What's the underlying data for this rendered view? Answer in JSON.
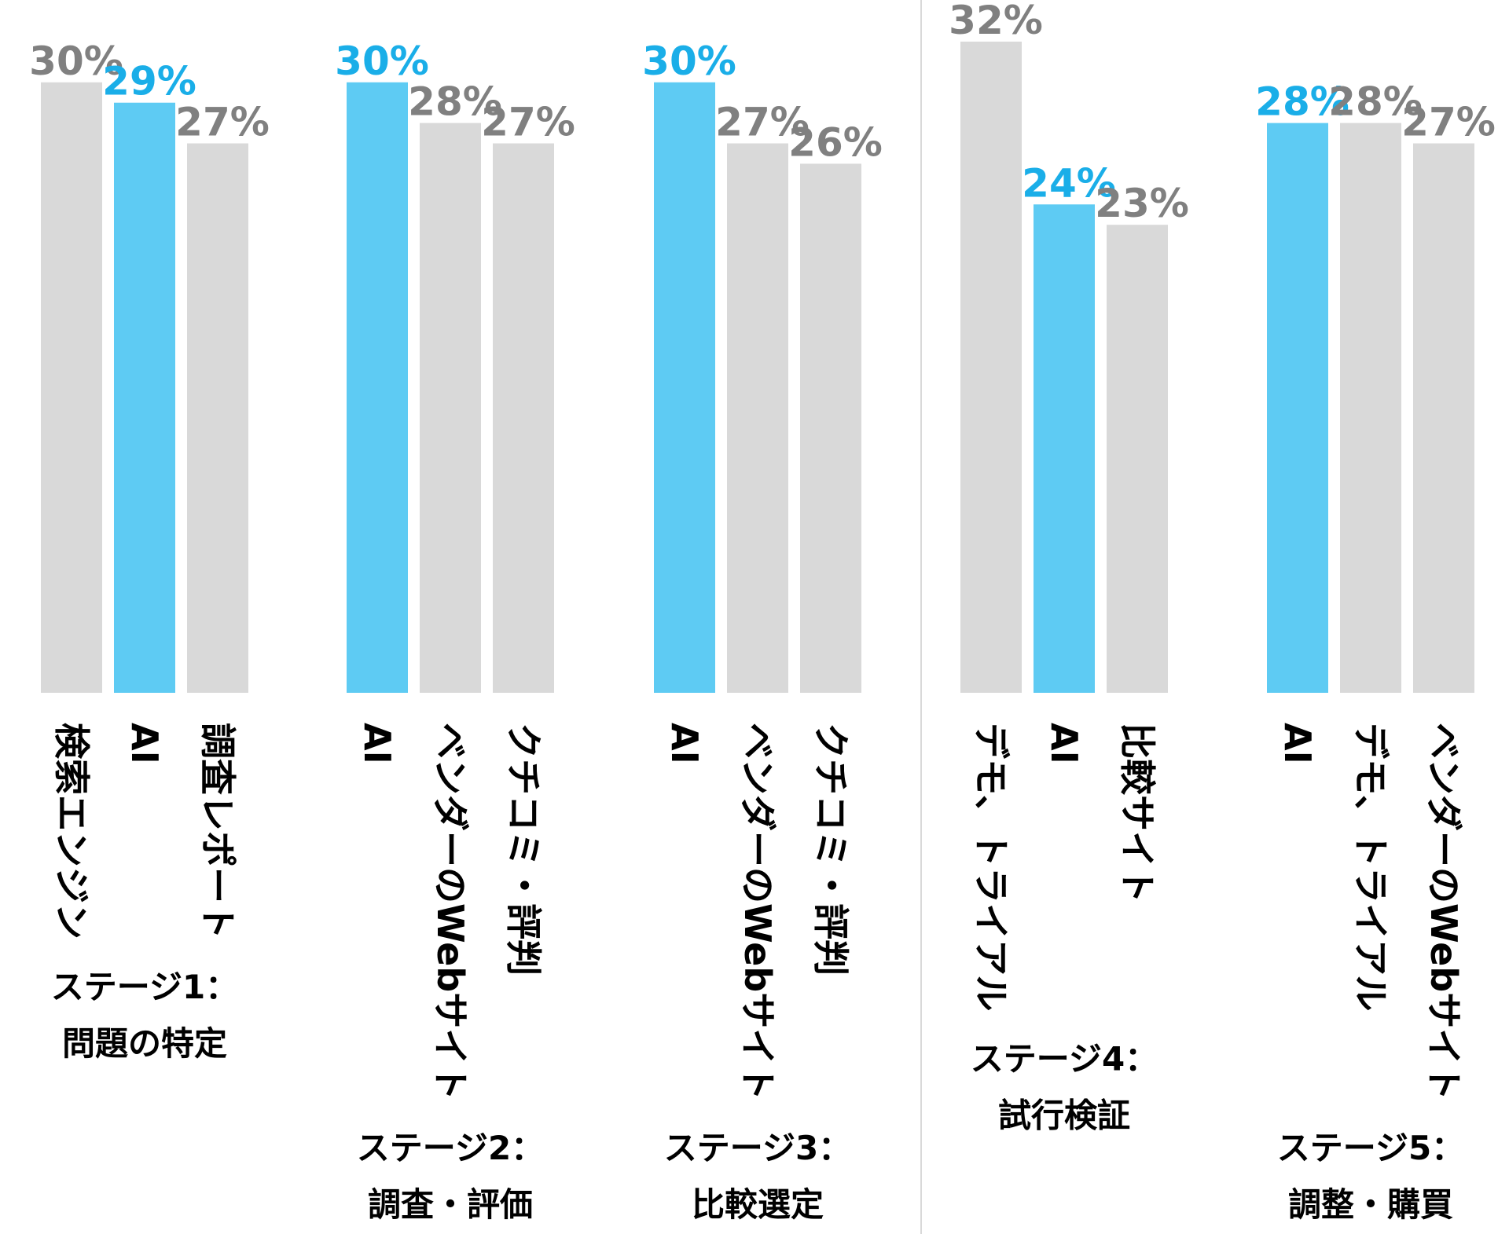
{
  "colors": {
    "highlight": "#5ecbf3",
    "other": "#d9d9d9",
    "highlight_label": "#1aaee8",
    "other_label": "#808080",
    "divider": "#d9d9d9"
  },
  "chart_data": {
    "type": "bar",
    "ylim": [
      0,
      32
    ],
    "highlight_category": "AI",
    "groups": [
      {
        "stage": "ステージ1：",
        "stage_name": "問題の特定",
        "bars": [
          {
            "label": "検索エンジン",
            "value": 30
          },
          {
            "label": "AI",
            "value": 29
          },
          {
            "label": "調査レポート",
            "value": 27
          }
        ]
      },
      {
        "stage": "ステージ2：",
        "stage_name": "調査・評価",
        "bars": [
          {
            "label": "AI",
            "value": 30
          },
          {
            "label": "ベンダーのWebサイト",
            "value": 28
          },
          {
            "label": "クチコミ・評判",
            "value": 27
          }
        ]
      },
      {
        "stage": "ステージ3：",
        "stage_name": "比較選定",
        "bars": [
          {
            "label": "AI",
            "value": 30
          },
          {
            "label": "ベンダーのWebサイト",
            "value": 27
          },
          {
            "label": "クチコミ・評判",
            "value": 26
          }
        ]
      },
      {
        "stage": "ステージ4：",
        "stage_name": "試行検証",
        "bars": [
          {
            "label": "デモ、トライアル",
            "value": 32
          },
          {
            "label": "AI",
            "value": 24
          },
          {
            "label": "比較サイト",
            "value": 23
          }
        ]
      },
      {
        "stage": "ステージ5：",
        "stage_name": "調整・購買",
        "bars": [
          {
            "label": "AI",
            "value": 28
          },
          {
            "label": "デモ、トライアル",
            "value": 28
          },
          {
            "label": "ベンダーのWebサイト",
            "value": 27
          }
        ]
      }
    ]
  }
}
